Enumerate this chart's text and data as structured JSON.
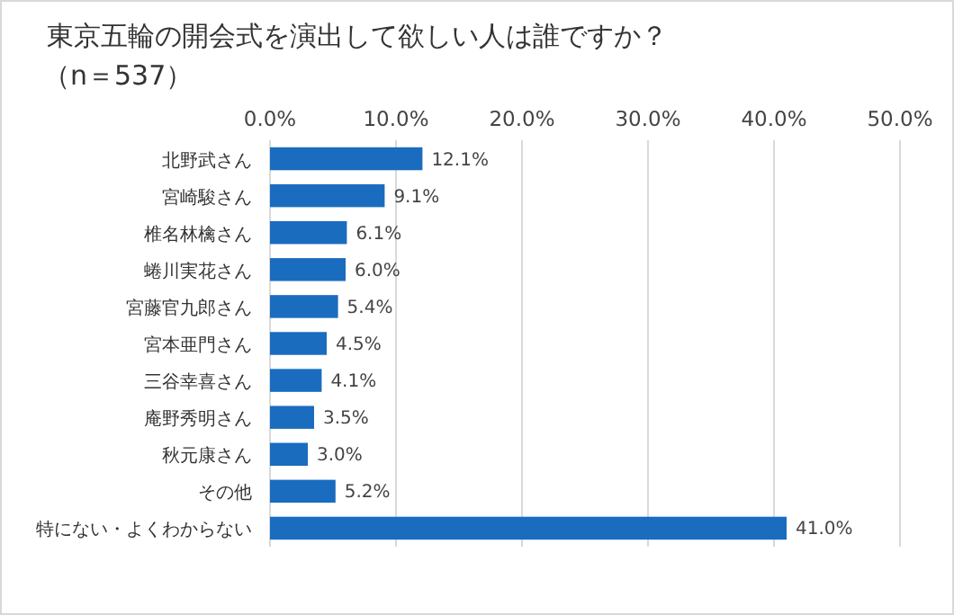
{
  "chart_data": {
    "type": "bar",
    "orientation": "horizontal",
    "title": "東京五輪の開会式を演出して欲しい人は誰ですか？",
    "subtitle": "（n＝537）",
    "categories": [
      "北野武さん",
      "宮崎駿さん",
      "椎名林檎さん",
      "蜷川実花さん",
      "宮藤官九郎さん",
      "宮本亜門さん",
      "三谷幸喜さん",
      "庵野秀明さん",
      "秋元康さん",
      "その他",
      "特にない・よくわからない"
    ],
    "values": [
      12.1,
      9.1,
      6.1,
      6.0,
      5.4,
      4.5,
      4.1,
      3.5,
      3.0,
      5.2,
      41.0
    ],
    "value_labels": [
      "12.1%",
      "9.1%",
      "6.1%",
      "6.0%",
      "5.4%",
      "4.5%",
      "4.1%",
      "3.5%",
      "3.0%",
      "5.2%",
      "41.0%"
    ],
    "color": "#1a6cbf",
    "xlim": [
      0,
      50
    ],
    "xticks": [
      {
        "value": 0,
        "label": "0.0%"
      },
      {
        "value": 10,
        "label": "10.0%"
      },
      {
        "value": 20,
        "label": "20.0%"
      },
      {
        "value": 30,
        "label": "30.0%"
      },
      {
        "value": 40,
        "label": "40.0%"
      },
      {
        "value": 50,
        "label": "50.0%"
      }
    ],
    "grid": "x"
  }
}
